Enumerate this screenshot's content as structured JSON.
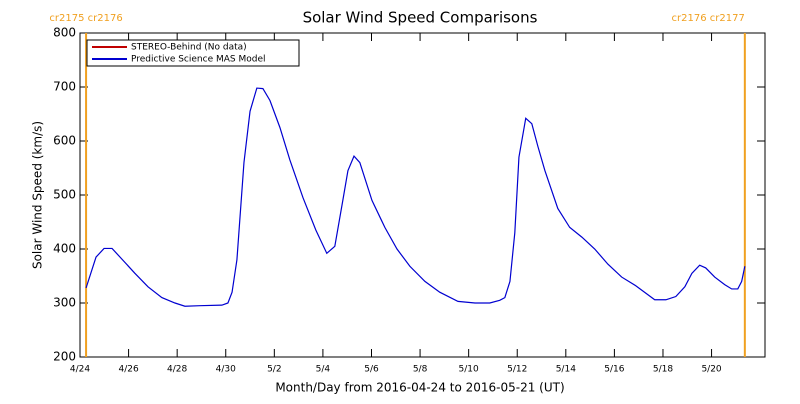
{
  "chart_data": {
    "type": "line",
    "title": "Solar Wind Speed Comparisons",
    "xlabel": "Month/Day from 2016-04-24 to 2016-05-21 (UT)",
    "ylabel": "Solar Wind Speed (km/s)",
    "x": [
      0.25,
      0.66,
      0.99,
      1.32,
      1.73,
      2.26,
      2.8,
      3.37,
      3.91,
      4.32,
      4.94,
      5.84,
      6.09,
      6.26,
      6.46,
      6.75,
      7.0,
      7.28,
      7.53,
      7.82,
      8.23,
      8.64,
      9.18,
      9.71,
      10.16,
      10.49,
      10.82,
      11.03,
      11.28,
      11.52,
      12.02,
      12.55,
      13.05,
      13.58,
      14.2,
      14.81,
      15.56,
      16.26,
      16.87,
      17.28,
      17.49,
      17.7,
      17.9,
      18.07,
      18.35,
      18.6,
      18.85,
      19.14,
      19.67,
      20.16,
      20.66,
      21.19,
      21.73,
      22.3,
      22.88,
      23.66,
      24.12,
      24.53,
      24.9,
      25.19,
      25.51,
      25.76,
      26.13,
      26.54,
      26.83,
      27.08,
      27.24,
      27.37
    ],
    "series": [
      {
        "name": "STEREO-Behind (No data)",
        "color": "#c00000",
        "values": [
          null,
          null,
          null,
          null,
          null,
          null,
          null,
          null,
          null,
          null,
          null,
          null,
          null,
          null,
          null,
          null,
          null,
          null,
          null,
          null,
          null,
          null,
          null,
          null,
          null,
          null,
          null,
          null,
          null,
          null,
          null,
          null,
          null,
          null,
          null,
          null,
          null,
          null,
          null,
          null,
          null,
          null,
          null,
          null,
          null,
          null,
          null,
          null,
          null,
          null,
          null,
          null,
          null,
          null,
          null,
          null,
          null,
          null,
          null,
          null,
          null,
          null,
          null,
          null,
          null,
          null,
          null,
          null
        ]
      },
      {
        "name": "Predictive Science MAS Model",
        "color": "#0000d0",
        "values": [
          328,
          385,
          401,
          401,
          381,
          355,
          330,
          310,
          300,
          294,
          295,
          296,
          300,
          320,
          380,
          560,
          655,
          698,
          697,
          675,
          625,
          565,
          495,
          435,
          392,
          405,
          490,
          545,
          572,
          560,
          490,
          440,
          400,
          368,
          340,
          320,
          303,
          300,
          300,
          305,
          310,
          340,
          430,
          570,
          642,
          632,
          590,
          545,
          475,
          440,
          422,
          400,
          372,
          348,
          332,
          306,
          306,
          312,
          330,
          355,
          370,
          365,
          348,
          334,
          326,
          326,
          340,
          368
        ]
      }
    ],
    "xlim": [
      0,
      28.2
    ],
    "xticks": [
      {
        "value": 0,
        "label": "4/24"
      },
      {
        "value": 2,
        "label": "4/26"
      },
      {
        "value": 4,
        "label": "4/28"
      },
      {
        "value": 6,
        "label": "4/30"
      },
      {
        "value": 8,
        "label": "5/2"
      },
      {
        "value": 10,
        "label": "5/4"
      },
      {
        "value": 12,
        "label": "5/6"
      },
      {
        "value": 14,
        "label": "5/8"
      },
      {
        "value": 16,
        "label": "5/10"
      },
      {
        "value": 18,
        "label": "5/12"
      },
      {
        "value": 20,
        "label": "5/14"
      },
      {
        "value": 22,
        "label": "5/16"
      },
      {
        "value": 24,
        "label": "5/18"
      },
      {
        "value": 26,
        "label": "5/20"
      }
    ],
    "ylim": [
      200,
      800
    ],
    "yticks": [
      200,
      300,
      400,
      500,
      600,
      700,
      800
    ],
    "markers": [
      {
        "x": 0.25,
        "label": "cr2175 cr2176"
      },
      {
        "x": 27.37,
        "label": "cr2176 cr2177"
      }
    ],
    "marker_color": "#f0a020",
    "legend": "upper left"
  }
}
